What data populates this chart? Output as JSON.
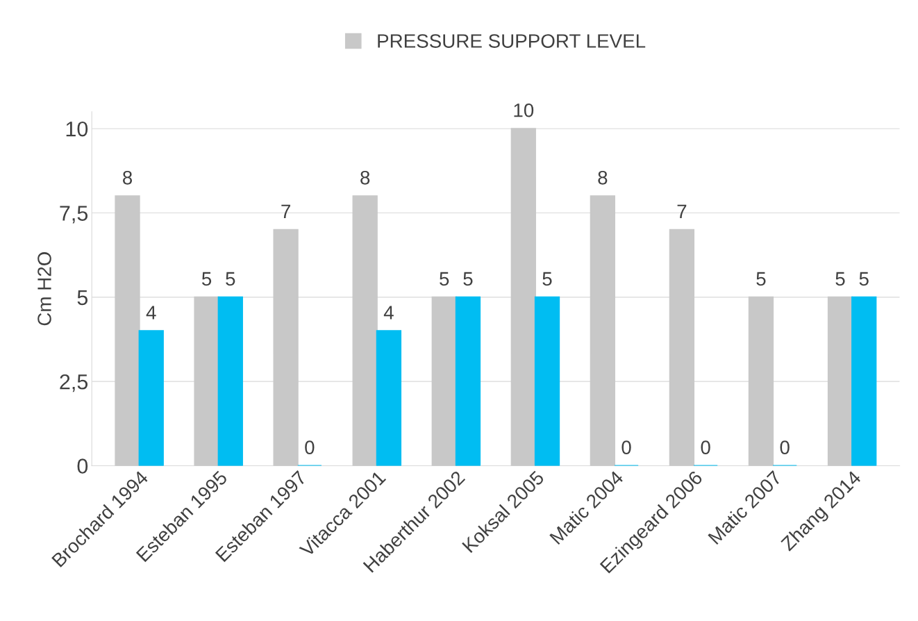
{
  "chart_data": {
    "type": "bar",
    "ylabel": "Cm H2O",
    "categories": [
      "Brochard 1994",
      "Esteban 1995",
      "Esteban 1997",
      "Vitacca 2001",
      "Haberthur 2002",
      "Koksal 2005",
      "Matic 2004",
      "Ezingeard 2006",
      "Matic 2007",
      "Zhang 2014"
    ],
    "series": [
      {
        "name": "PRESSURE SUPPORT LEVEL",
        "color": "#c8c8c8",
        "values": [
          8,
          5,
          7,
          8,
          5,
          10,
          8,
          7,
          5,
          5
        ]
      },
      {
        "color": "#00bdf2",
        "values": [
          4,
          5,
          0,
          4,
          5,
          5,
          0,
          0,
          0,
          5
        ]
      }
    ],
    "ylim": [
      0,
      10.5
    ],
    "yticks": [
      {
        "value": 0,
        "label": "0"
      },
      {
        "value": 2.5,
        "label": "2,5"
      },
      {
        "value": 5,
        "label": "5"
      },
      {
        "value": 7.5,
        "label": "7,5"
      },
      {
        "value": 10,
        "label": "10"
      }
    ],
    "data_labels": true,
    "grid": "y",
    "legend": "top"
  }
}
